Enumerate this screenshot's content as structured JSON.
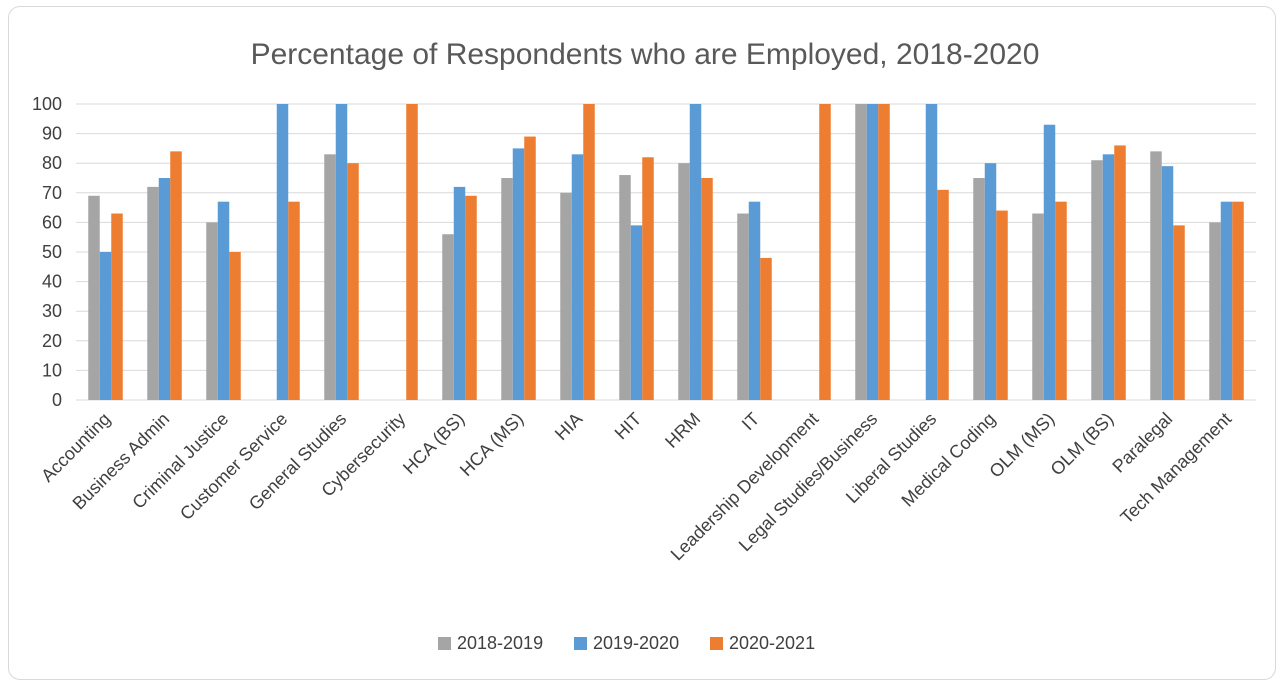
{
  "chart_data": {
    "type": "bar",
    "title": "Percentage of Respondents who are Employed, 2018-2020",
    "xlabel": "",
    "ylabel": "",
    "ylim": [
      0,
      100
    ],
    "yticks": [
      0,
      10,
      20,
      30,
      40,
      50,
      60,
      70,
      80,
      90,
      100
    ],
    "grid": true,
    "legend_position": "bottom",
    "categories": [
      "Accounting",
      "Business Admin",
      "Criminal Justice",
      "Customer Service",
      "General Studies",
      "Cybersecurity",
      "HCA (BS)",
      "HCA (MS)",
      "HIA",
      "HIT",
      "HRM",
      "IT",
      "Leadership Development",
      "Legal Studies/Business",
      "Liberal Studies",
      "Medical Coding",
      "OLM (MS)",
      "OLM (BS)",
      "Paralegal",
      "Tech Management"
    ],
    "series": [
      {
        "name": "2018-2019",
        "color": "#a5a5a5",
        "values": [
          69,
          72,
          60,
          null,
          83,
          null,
          56,
          75,
          70,
          76,
          80,
          63,
          null,
          100,
          null,
          75,
          63,
          81,
          84,
          60
        ]
      },
      {
        "name": "2019-2020",
        "color": "#5b9bd5",
        "values": [
          50,
          75,
          67,
          100,
          100,
          null,
          72,
          85,
          83,
          59,
          100,
          67,
          null,
          100,
          100,
          80,
          93,
          83,
          79,
          67
        ]
      },
      {
        "name": "2020-2021",
        "color": "#ed7d31",
        "values": [
          63,
          84,
          50,
          67,
          80,
          100,
          69,
          89,
          100,
          82,
          75,
          48,
          100,
          100,
          71,
          64,
          67,
          86,
          59,
          67
        ]
      }
    ]
  }
}
